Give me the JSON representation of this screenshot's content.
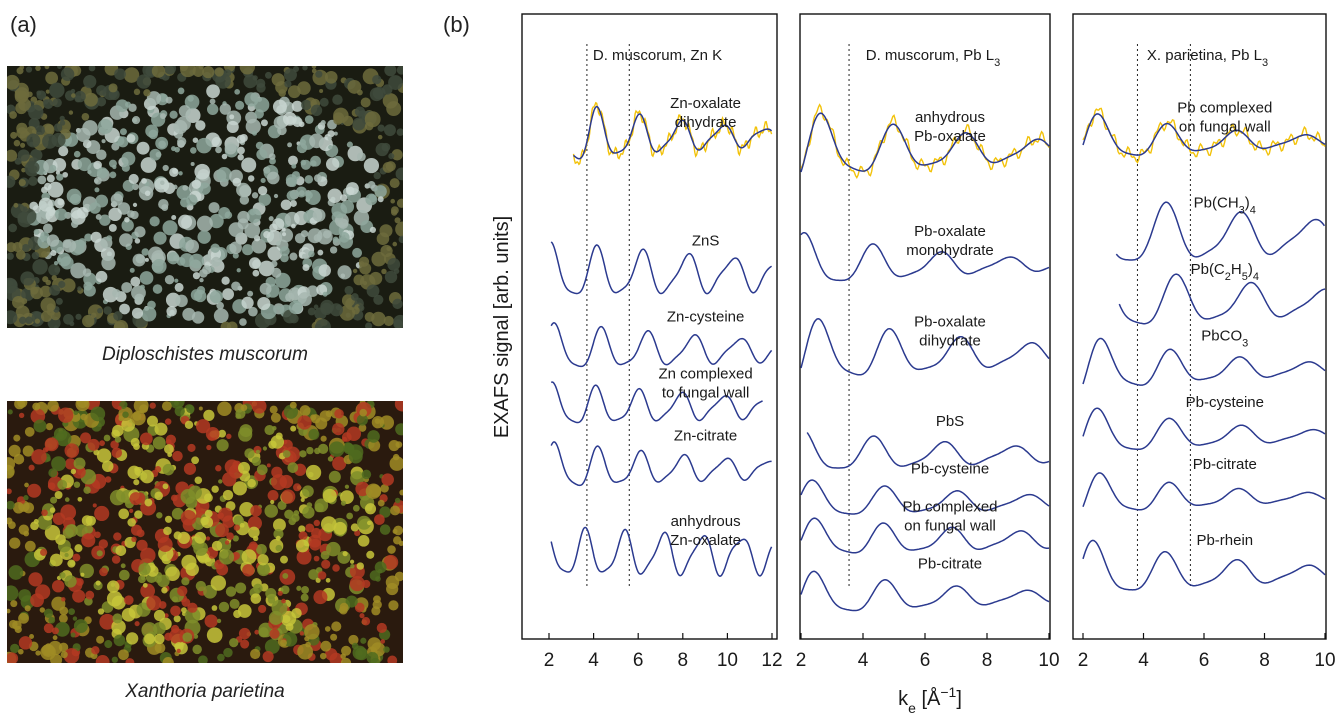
{
  "figure": {
    "label_a": "(a)",
    "label_b": "(b)"
  },
  "photos": [
    {
      "caption": "Diploschistes muscorum",
      "palette": [
        "#1a1c12",
        "#6d6b3c",
        "#a7b7b0",
        "#8ea79c",
        "#c9d6d1",
        "#3f4a3c"
      ]
    },
    {
      "caption": "Xanthoria parietina",
      "palette": [
        "#2a1a0e",
        "#a08c24",
        "#c7c63a",
        "#7f8e2a",
        "#b33a22",
        "#4f6b1f"
      ]
    }
  ],
  "colors": {
    "reference": "#2b3a8f",
    "sample": "#f2c20a",
    "axis": "#111111",
    "guide": "#222222"
  },
  "chart_data": {
    "type": "line",
    "ylabel": "EXAFS signal [arb. units]",
    "xlabel": "k",
    "xlabel_sub": "e",
    "xlabel_unit": " [Å",
    "xlabel_sup": "−1",
    "xlabel_close": "]",
    "panels": [
      {
        "title": "D. muscorum, Zn K",
        "xlim": [
          2,
          12
        ],
        "xticks": [
          "2",
          "4",
          "6",
          "8",
          "10",
          "12"
        ],
        "guides": [
          3.7,
          5.6
        ],
        "sample_on": 0,
        "series": [
          {
            "label": [
              "Zn-oxalate",
              "dihydrate"
            ],
            "baseline": 0.7,
            "amp": 0.34,
            "freq": 3.35,
            "phase": 0.2,
            "xr": [
              3.1,
              12
            ],
            "decay": 0.14
          },
          {
            "label": [
              "ZnS"
            ],
            "baseline": 2.15,
            "amp": 0.28,
            "freq": 3.1,
            "phase": 1.3,
            "xr": [
              2.1,
              12
            ],
            "decay": 0.06
          },
          {
            "label": [
              "Zn-cysteine"
            ],
            "baseline": 2.95,
            "amp": 0.24,
            "freq": 3.05,
            "phase": 0.9,
            "xr": [
              2.1,
              12
            ],
            "decay": 0.08
          },
          {
            "label": [
              "Zn complexed",
              "to fungal wall"
            ],
            "baseline": 3.55,
            "amp": 0.22,
            "freq": 3.3,
            "phase": 0.6,
            "xr": [
              2.1,
              11.6
            ],
            "decay": 0.08
          },
          {
            "label": [
              "Zn-citrate"
            ],
            "baseline": 4.2,
            "amp": 0.24,
            "freq": 3.3,
            "phase": 0.3,
            "xr": [
              2.1,
              12
            ],
            "decay": 0.1
          },
          {
            "label": [
              "anhydrous",
              "Zn-oxalate"
            ],
            "baseline": 5.1,
            "amp": 0.24,
            "freq": 3.6,
            "phase": 1.1,
            "xr": [
              2.1,
              12
            ],
            "decay": 0.03
          }
        ]
      },
      {
        "title": "D. muscorum, Pb L",
        "title_sub": "3",
        "xlim": [
          2,
          10
        ],
        "xticks": [
          "2",
          "4",
          "6",
          "8",
          "10"
        ],
        "guides": [
          3.55
        ],
        "sample_on": 0,
        "series": [
          {
            "label": [
              "anhydrous",
              "Pb-oxalate"
            ],
            "baseline": 0.85,
            "amp": 0.36,
            "freq": 2.75,
            "phase": 0.4,
            "xr": [
              2.0,
              10
            ],
            "decay": 0.16
          },
          {
            "label": [
              "Pb-oxalate",
              "monohydrate"
            ],
            "baseline": 2.05,
            "amp": 0.28,
            "freq": 2.9,
            "phase": 1.6,
            "xr": [
              2.0,
              10
            ],
            "decay": 0.2
          },
          {
            "label": [
              "Pb-oxalate",
              "dihydrate"
            ],
            "baseline": 3.0,
            "amp": 0.34,
            "freq": 2.8,
            "phase": 0.5,
            "xr": [
              2.0,
              10
            ],
            "decay": 0.15
          },
          {
            "label": [
              "PbS"
            ],
            "baseline": 4.05,
            "amp": 0.22,
            "freq": 2.8,
            "phase": 2.0,
            "xr": [
              2.2,
              10
            ],
            "decay": 0.14
          },
          {
            "label": [
              "Pb-cysteine"
            ],
            "baseline": 4.55,
            "amp": 0.2,
            "freq": 2.75,
            "phase": 1.2,
            "xr": [
              2.0,
              10
            ],
            "decay": 0.14
          },
          {
            "label": [
              "Pb complexed",
              "on fungal wall"
            ],
            "baseline": 4.95,
            "amp": 0.2,
            "freq": 2.9,
            "phase": 0.6,
            "xr": [
              2.0,
              10
            ],
            "decay": 0.12
          },
          {
            "label": [
              "Pb-citrate"
            ],
            "baseline": 5.55,
            "amp": 0.24,
            "freq": 2.8,
            "phase": 0.9,
            "xr": [
              2.0,
              10
            ],
            "decay": 0.18
          }
        ]
      },
      {
        "title": "X. parietina, Pb L",
        "title_sub": "3",
        "xlim": [
          2,
          10
        ],
        "xticks": [
          "2",
          "4",
          "6",
          "8",
          "10"
        ],
        "guides": [
          3.8,
          5.55
        ],
        "sample_on": 0,
        "series": [
          {
            "label": [
              "Pb complexed",
              "on fungal wall"
            ],
            "baseline": 0.75,
            "amp": 0.26,
            "freq": 2.8,
            "phase": 0.7,
            "xr": [
              2.0,
              10
            ],
            "decay": 0.2
          },
          {
            "label": [
              "Pb(CH",
              "3",
              ")",
              "4"
            ],
            "formula": true,
            "baseline": 1.75,
            "amp": 0.4,
            "freq": 2.6,
            "phase": 1.8,
            "xr": [
              3.1,
              10
            ],
            "decay": 0.12
          },
          {
            "label": [
              "Pb(C",
              "2",
              "H",
              "5",
              ")",
              "4"
            ],
            "formula": true,
            "baseline": 2.45,
            "amp": 0.36,
            "freq": 2.6,
            "phase": 0.9,
            "xr": [
              3.2,
              10
            ],
            "decay": 0.13
          },
          {
            "label": [
              "PbCO",
              "3"
            ],
            "formula": true,
            "baseline": 3.15,
            "amp": 0.3,
            "freq": 2.8,
            "phase": 0.4,
            "xr": [
              2.0,
              10
            ],
            "decay": 0.2
          },
          {
            "label": [
              "Pb-cysteine"
            ],
            "baseline": 3.85,
            "amp": 0.26,
            "freq": 2.7,
            "phase": 1.0,
            "xr": [
              2.0,
              10
            ],
            "decay": 0.2
          },
          {
            "label": [
              "Pb-citrate"
            ],
            "baseline": 4.5,
            "amp": 0.24,
            "freq": 2.8,
            "phase": 0.5,
            "xr": [
              2.0,
              10
            ],
            "decay": 0.22
          },
          {
            "label": [
              "Pb-rhein"
            ],
            "baseline": 5.3,
            "amp": 0.3,
            "freq": 2.7,
            "phase": 1.4,
            "xr": [
              2.0,
              10
            ],
            "decay": 0.18
          }
        ]
      }
    ]
  }
}
